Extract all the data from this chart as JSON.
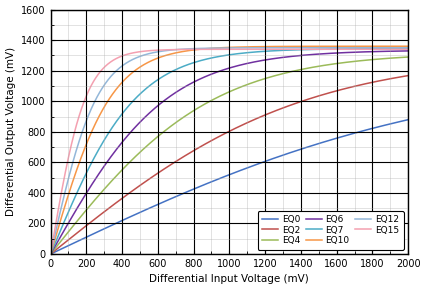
{
  "title": "",
  "xlabel": "Differential Input Voltage (mV)",
  "ylabel": "Differential Output Voltage (mV)",
  "xlim": [
    0,
    2000
  ],
  "ylim": [
    0,
    1600
  ],
  "xticks": [
    0,
    200,
    400,
    600,
    800,
    1000,
    1200,
    1400,
    1600,
    1800,
    2000
  ],
  "yticks": [
    0,
    200,
    400,
    600,
    800,
    1000,
    1200,
    1400,
    1600
  ],
  "series": [
    {
      "label": "EQ0",
      "color": "#4472C4",
      "sat": 1220,
      "k": 2200
    },
    {
      "label": "EQ2",
      "color": "#C0504D",
      "sat": 1310,
      "k": 1400
    },
    {
      "label": "EQ4",
      "color": "#9BBB59",
      "sat": 1320,
      "k": 900
    },
    {
      "label": "EQ6",
      "color": "#7030A0",
      "sat": 1335,
      "k": 650
    },
    {
      "label": "EQ7",
      "color": "#4BACC6",
      "sat": 1345,
      "k": 480
    },
    {
      "label": "EQ10",
      "color": "#F79646",
      "sat": 1360,
      "k": 340
    },
    {
      "label": "EQ12",
      "color": "#93B7D9",
      "sat": 1350,
      "k": 260
    },
    {
      "label": "EQ15",
      "color": "#F4A0B0",
      "sat": 1340,
      "k": 195
    }
  ],
  "background_color": "#FFFFFF",
  "major_grid_color": "#000000",
  "minor_grid_color": "#AAAAAA",
  "legend_fontsize": 6.5,
  "axis_fontsize": 7.5,
  "tick_fontsize": 7
}
